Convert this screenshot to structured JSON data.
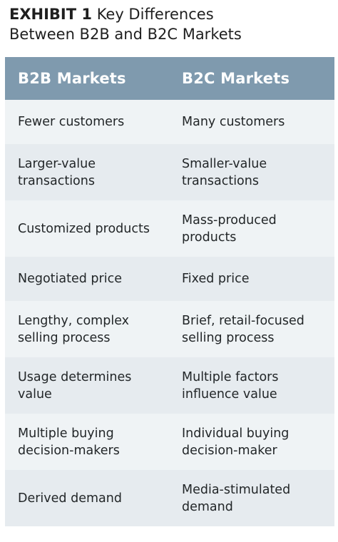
{
  "exhibit": {
    "label": "EXHIBIT 1",
    "title_line1": "Key Differences",
    "title_line2": "Between B2B and B2C Markets"
  },
  "table": {
    "headers": [
      "B2B Markets",
      "B2C Markets"
    ],
    "rows": [
      {
        "b2b": "Fewer customers",
        "b2c": "Many customers"
      },
      {
        "b2b": "Larger-value\ntransactions",
        "b2c": "Smaller-value\ntransactions"
      },
      {
        "b2b": "Customized products",
        "b2c": "Mass-produced\nproducts"
      },
      {
        "b2b": "Negotiated price",
        "b2c": "Fixed price"
      },
      {
        "b2b": "Lengthy, complex\nselling process",
        "b2c": "Brief, retail-focused\nselling process"
      },
      {
        "b2b": "Usage determines\nvalue",
        "b2c": "Multiple factors\ninfluence value"
      },
      {
        "b2b": "Multiple buying\ndecision-makers",
        "b2c": "Individual buying\ndecision-maker"
      },
      {
        "b2b": "Derived demand",
        "b2c": "Media-stimulated\ndemand"
      }
    ]
  },
  "colors": {
    "header_bg": "#7f9aae",
    "row_dark": "#e6ebef",
    "row_light": "#eff3f5"
  }
}
